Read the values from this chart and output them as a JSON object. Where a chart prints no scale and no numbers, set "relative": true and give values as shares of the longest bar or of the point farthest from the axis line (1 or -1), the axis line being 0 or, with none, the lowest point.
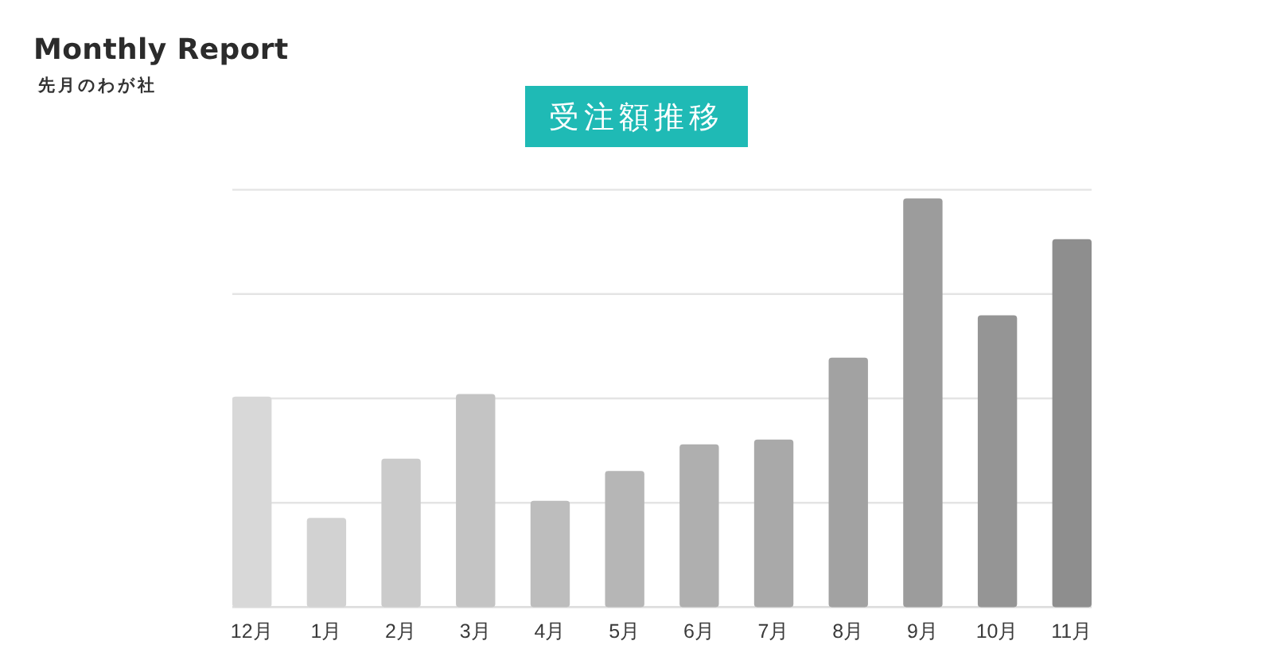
{
  "chart_data": {
    "type": "bar",
    "title": "受注額推移",
    "annotations": [
      "Monthly Report",
      "先月のわが社"
    ],
    "categories": [
      "12月",
      "1月",
      "2月",
      "3月",
      "4月",
      "5月",
      "6月",
      "7月",
      "8月",
      "9月",
      "10月",
      "11月"
    ],
    "values": [
      0.515,
      0.218,
      0.363,
      0.521,
      0.26,
      0.333,
      0.398,
      0.41,
      0.61,
      1,
      0.714,
      0.9
    ],
    "colors": [
      "#d8d8d8",
      "#d2d2d2",
      "#cbcbcb",
      "#c4c4c4",
      "#bdbdbd",
      "#b6b6b6",
      "#afafaf",
      "#a9a9a9",
      "#a2a2a2",
      "#9c9c9c",
      "#959595",
      "#8e8e8e"
    ],
    "relative": true,
    "grid": "y"
  }
}
